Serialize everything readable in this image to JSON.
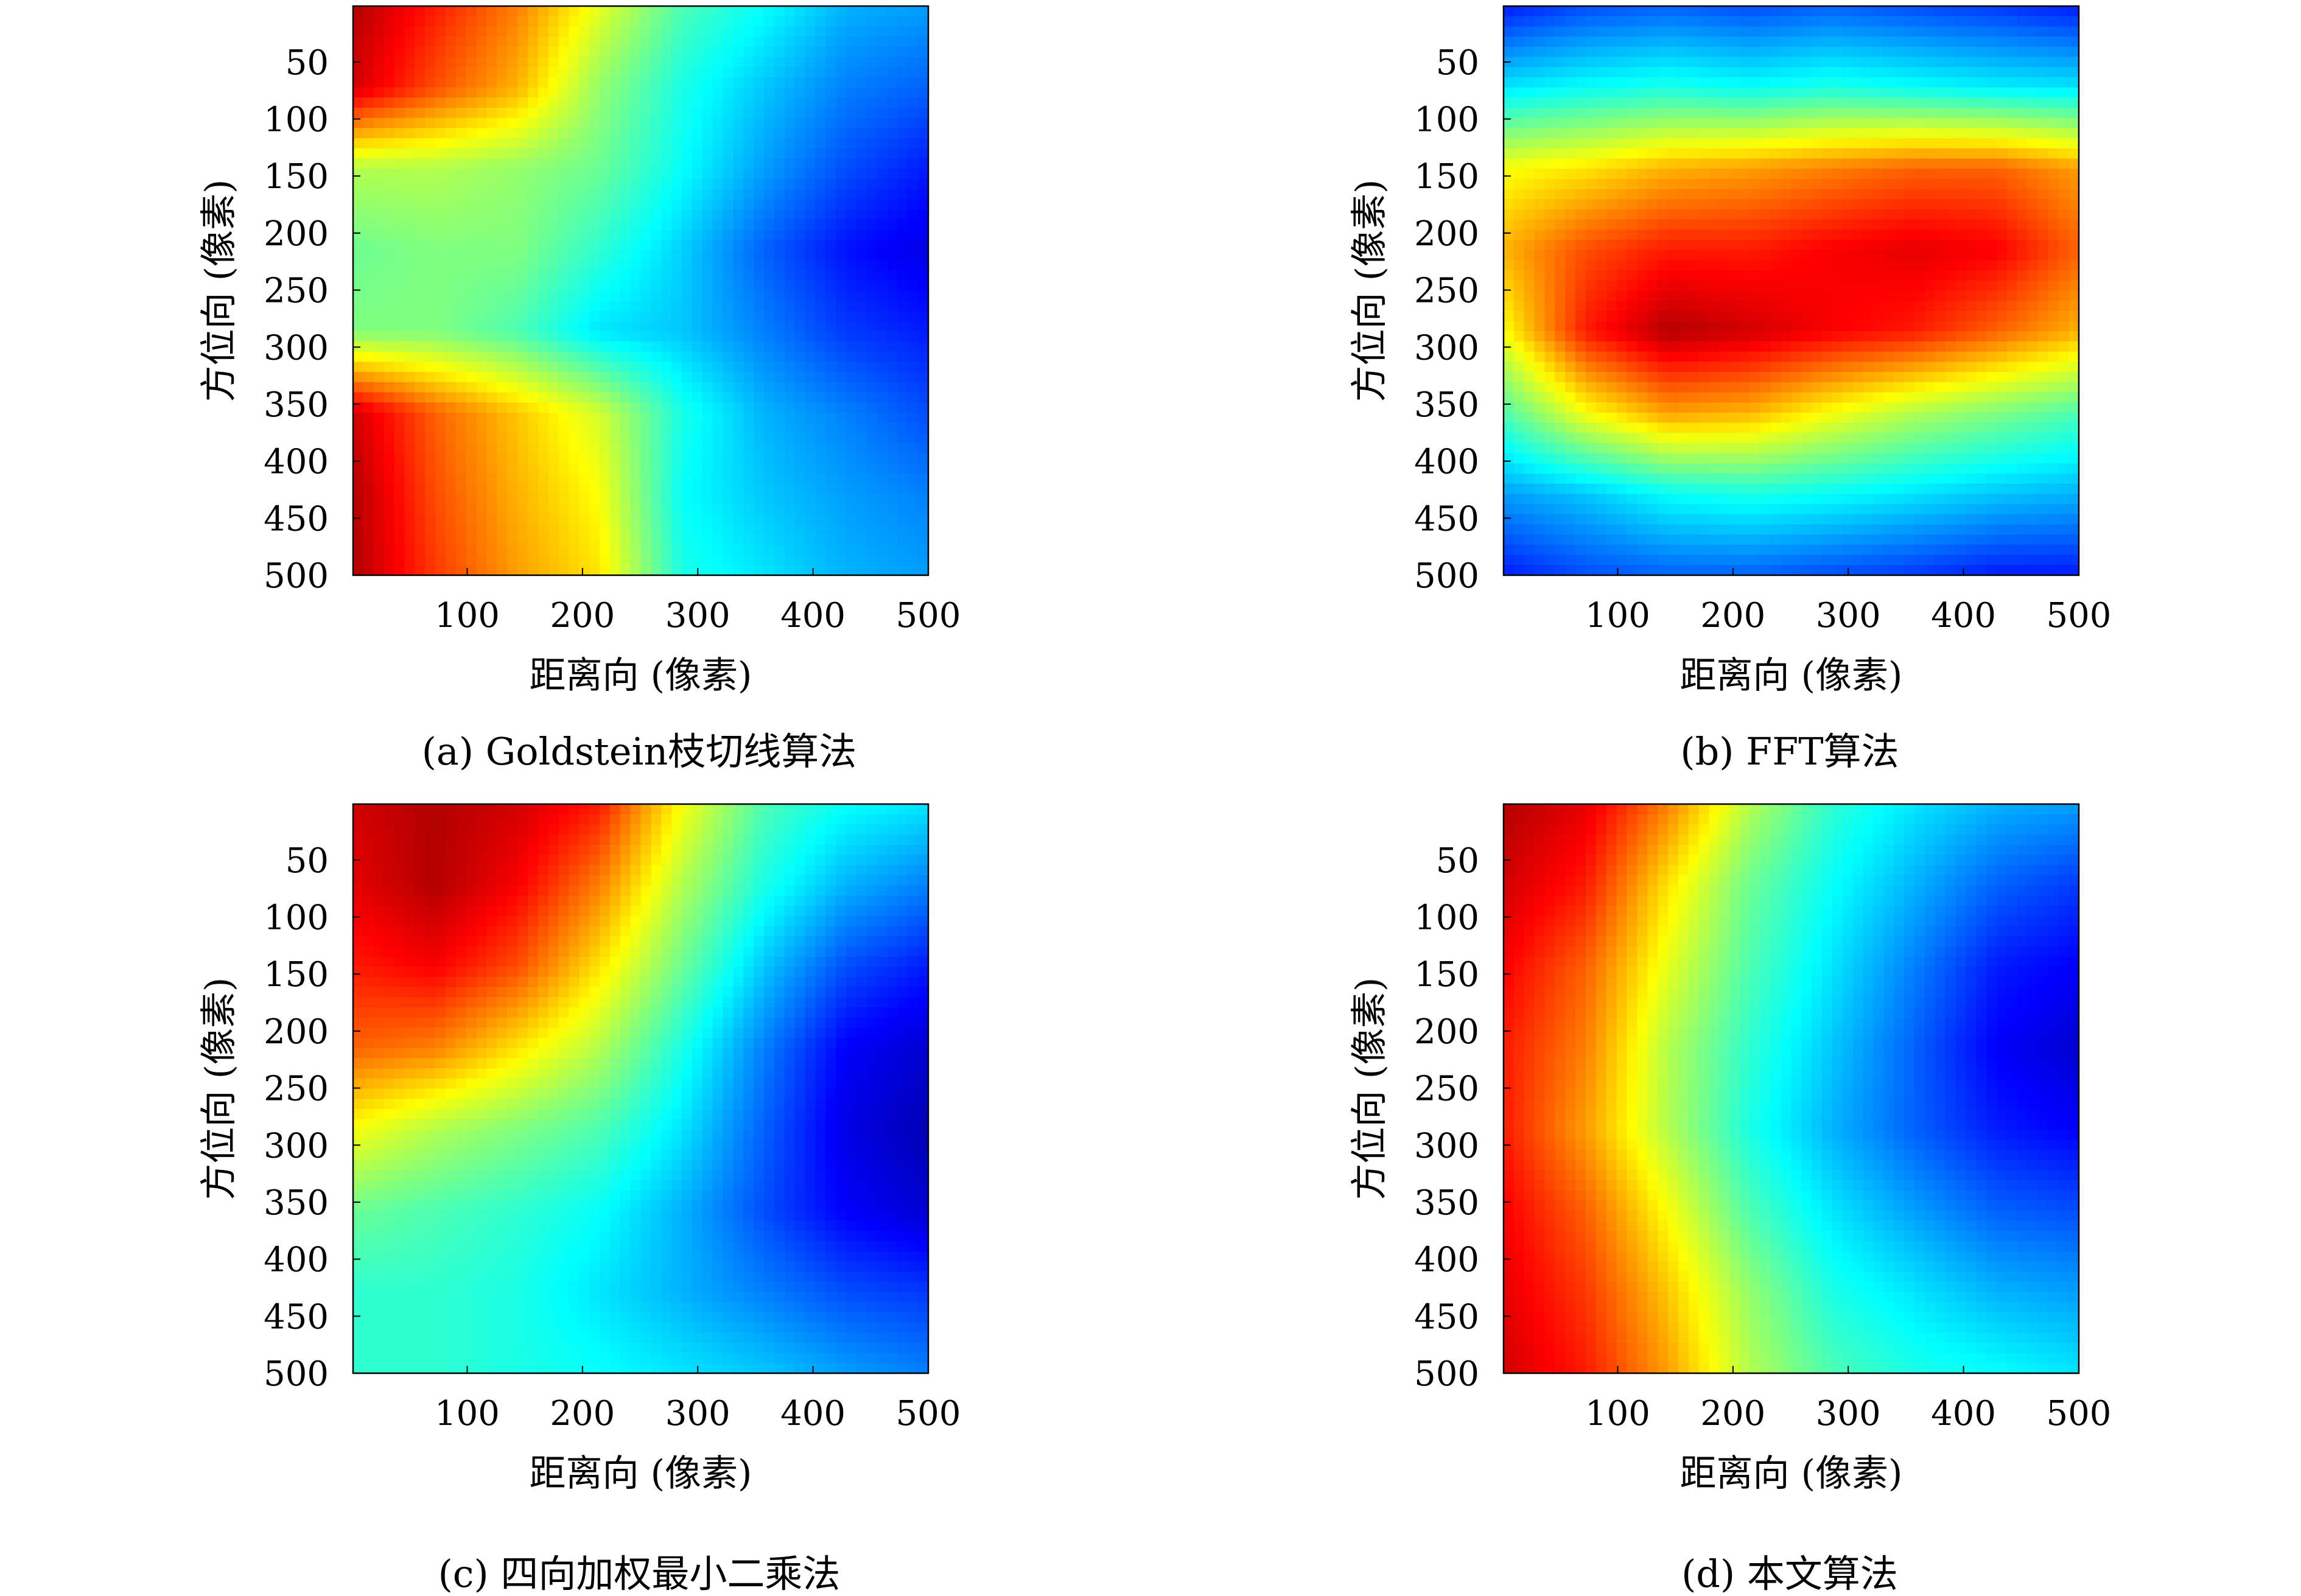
{
  "figure": {
    "panels": [
      {
        "id": "a",
        "caption": "(a) Goldstein枝切线算法",
        "xlabel": "距离向 (像素)",
        "ylabel": "方位向 (像素)",
        "xticks": [
          "100",
          "200",
          "300",
          "400",
          "500"
        ],
        "yticks": [
          "50",
          "100",
          "150",
          "200",
          "250",
          "300",
          "350",
          "400",
          "450",
          "500"
        ]
      },
      {
        "id": "b",
        "caption": "(b) FFT算法",
        "xlabel": "距离向 (像素)",
        "ylabel": "方位向 (像素)",
        "xticks": [
          "100",
          "200",
          "300",
          "400",
          "500"
        ],
        "yticks": [
          "50",
          "100",
          "150",
          "200",
          "250",
          "300",
          "350",
          "400",
          "450",
          "500"
        ]
      },
      {
        "id": "c",
        "caption": "(c) 四向加权最小二乘法",
        "xlabel": "距离向 (像素)",
        "ylabel": "方位向 (像素)",
        "xticks": [
          "100",
          "200",
          "300",
          "400",
          "500"
        ],
        "yticks": [
          "50",
          "100",
          "150",
          "200",
          "250",
          "300",
          "350",
          "400",
          "450",
          "500"
        ]
      },
      {
        "id": "d",
        "caption": "(d) 本文算法",
        "xlabel": "距离向 (像素)",
        "ylabel": "方位向 (像素)",
        "xticks": [
          "100",
          "200",
          "300",
          "400",
          "500"
        ],
        "yticks": [
          "50",
          "100",
          "150",
          "200",
          "250",
          "300",
          "350",
          "400",
          "450",
          "500"
        ]
      }
    ]
  },
  "chart_data": [
    {
      "type": "heatmap",
      "title": "(a) Goldstein枝切线算法",
      "xlabel": "距离向 (像素)",
      "ylabel": "方位向 (像素)",
      "xlim": [
        1,
        500
      ],
      "ylim": [
        1,
        500
      ],
      "y_axis_reversed": true,
      "x_ticks": [
        100,
        200,
        300,
        400,
        500
      ],
      "y_ticks": [
        50,
        100,
        150,
        200,
        250,
        300,
        350,
        400,
        450,
        500
      ],
      "colormap": "jet",
      "grid": false,
      "coarse_values_grid_8x8": [
        [
          0.95,
          0.85,
          0.75,
          0.6,
          0.45,
          0.38,
          0.3,
          0.28
        ],
        [
          0.92,
          0.8,
          0.7,
          0.52,
          0.4,
          0.32,
          0.25,
          0.22
        ],
        [
          0.55,
          0.55,
          0.52,
          0.48,
          0.38,
          0.28,
          0.2,
          0.15
        ],
        [
          0.48,
          0.5,
          0.5,
          0.42,
          0.33,
          0.22,
          0.14,
          0.1
        ],
        [
          0.5,
          0.5,
          0.45,
          0.35,
          0.32,
          0.25,
          0.18,
          0.15
        ],
        [
          0.92,
          0.78,
          0.68,
          0.58,
          0.4,
          0.3,
          0.25,
          0.2
        ],
        [
          0.95,
          0.8,
          0.7,
          0.62,
          0.38,
          0.32,
          0.28,
          0.25
        ],
        [
          0.95,
          0.82,
          0.72,
          0.65,
          0.4,
          0.35,
          0.3,
          0.28
        ]
      ]
    },
    {
      "type": "heatmap",
      "title": "(b) FFT算法",
      "xlabel": "距离向 (像素)",
      "ylabel": "方位向 (像素)",
      "xlim": [
        1,
        500
      ],
      "ylim": [
        1,
        500
      ],
      "y_axis_reversed": true,
      "x_ticks": [
        100,
        200,
        300,
        400,
        500
      ],
      "y_ticks": [
        50,
        100,
        150,
        200,
        250,
        300,
        350,
        400,
        450,
        500
      ],
      "colormap": "jet",
      "grid": false,
      "coarse_values_grid_8x8": [
        [
          0.15,
          0.2,
          0.22,
          0.2,
          0.22,
          0.2,
          0.18,
          0.15
        ],
        [
          0.35,
          0.38,
          0.4,
          0.38,
          0.4,
          0.38,
          0.36,
          0.35
        ],
        [
          0.62,
          0.65,
          0.7,
          0.72,
          0.75,
          0.78,
          0.78,
          0.72
        ],
        [
          0.7,
          0.8,
          0.85,
          0.85,
          0.88,
          0.9,
          0.88,
          0.78
        ],
        [
          0.62,
          0.85,
          0.95,
          0.92,
          0.88,
          0.85,
          0.78,
          0.7
        ],
        [
          0.45,
          0.62,
          0.72,
          0.7,
          0.62,
          0.55,
          0.5,
          0.45
        ],
        [
          0.28,
          0.32,
          0.38,
          0.4,
          0.38,
          0.35,
          0.32,
          0.3
        ],
        [
          0.15,
          0.2,
          0.22,
          0.22,
          0.2,
          0.18,
          0.15,
          0.15
        ]
      ]
    },
    {
      "type": "heatmap",
      "title": "(c) 四向加权最小二乘法",
      "xlabel": "距离向 (像素)",
      "ylabel": "方位向 (像素)",
      "xlim": [
        1,
        500
      ],
      "ylim": [
        1,
        500
      ],
      "y_axis_reversed": true,
      "x_ticks": [
        100,
        200,
        300,
        400,
        500
      ],
      "y_ticks": [
        50,
        100,
        150,
        200,
        250,
        300,
        350,
        400,
        450,
        500
      ],
      "colormap": "jet",
      "grid": false,
      "coarse_values_grid_8x8": [
        [
          0.92,
          0.95,
          0.92,
          0.85,
          0.62,
          0.45,
          0.38,
          0.35
        ],
        [
          0.9,
          0.95,
          0.88,
          0.75,
          0.55,
          0.4,
          0.3,
          0.25
        ],
        [
          0.85,
          0.88,
          0.8,
          0.65,
          0.48,
          0.32,
          0.2,
          0.15
        ],
        [
          0.78,
          0.75,
          0.65,
          0.55,
          0.4,
          0.25,
          0.12,
          0.08
        ],
        [
          0.62,
          0.55,
          0.5,
          0.45,
          0.35,
          0.22,
          0.1,
          0.05
        ],
        [
          0.48,
          0.45,
          0.42,
          0.38,
          0.3,
          0.2,
          0.12,
          0.08
        ],
        [
          0.42,
          0.42,
          0.4,
          0.35,
          0.3,
          0.25,
          0.2,
          0.18
        ],
        [
          0.42,
          0.42,
          0.4,
          0.38,
          0.35,
          0.32,
          0.28,
          0.25
        ]
      ]
    },
    {
      "type": "heatmap",
      "title": "(d) 本文算法",
      "xlabel": "距离向 (像素)",
      "ylabel": "方位向 (像素)",
      "xlim": [
        1,
        500
      ],
      "ylim": [
        1,
        500
      ],
      "y_axis_reversed": true,
      "x_ticks": [
        100,
        200,
        300,
        400,
        500
      ],
      "y_ticks": [
        50,
        100,
        150,
        200,
        250,
        300,
        350,
        400,
        450,
        500
      ],
      "colormap": "jet",
      "grid": false,
      "coarse_values_grid_8x8": [
        [
          0.95,
          0.9,
          0.75,
          0.55,
          0.42,
          0.35,
          0.3,
          0.28
        ],
        [
          0.92,
          0.85,
          0.65,
          0.48,
          0.38,
          0.3,
          0.22,
          0.18
        ],
        [
          0.88,
          0.78,
          0.6,
          0.45,
          0.35,
          0.25,
          0.15,
          0.12
        ],
        [
          0.85,
          0.75,
          0.55,
          0.42,
          0.32,
          0.22,
          0.12,
          0.08
        ],
        [
          0.85,
          0.72,
          0.55,
          0.4,
          0.3,
          0.22,
          0.15,
          0.12
        ],
        [
          0.88,
          0.78,
          0.62,
          0.45,
          0.35,
          0.28,
          0.22,
          0.2
        ],
        [
          0.9,
          0.82,
          0.68,
          0.52,
          0.4,
          0.35,
          0.3,
          0.28
        ],
        [
          0.92,
          0.85,
          0.72,
          0.55,
          0.45,
          0.4,
          0.38,
          0.35
        ]
      ]
    }
  ]
}
